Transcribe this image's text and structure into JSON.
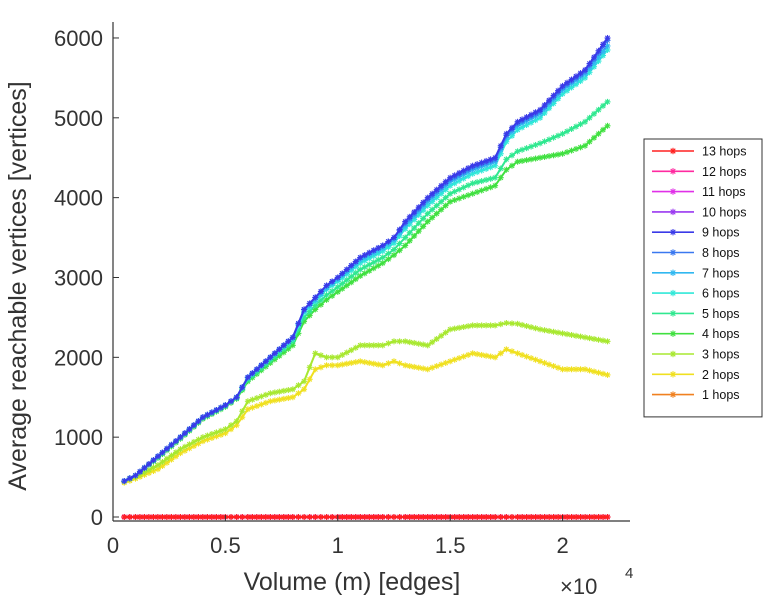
{
  "chart_data": {
    "type": "line",
    "title": "",
    "xlabel": "Volume (m) [edges]",
    "ylabel": "Average reachable vertices [vertices]",
    "x_exponent_base": "×10",
    "x_exponent_power": "4",
    "xlim": [
      0,
      2.3
    ],
    "ylim": [
      -50,
      6200
    ],
    "x_ticks": [
      0,
      0.5,
      1,
      1.5,
      2
    ],
    "x_tick_labels": [
      "0",
      "0.5",
      "1",
      "1.5",
      "2"
    ],
    "y_ticks": [
      0,
      1000,
      2000,
      3000,
      4000,
      5000,
      6000
    ],
    "y_tick_labels": [
      "0",
      "1000",
      "2000",
      "3000",
      "4000",
      "5000",
      "6000"
    ],
    "legend_position": "right",
    "marker": "asterisk",
    "x": [
      0.05,
      0.1,
      0.2,
      0.3,
      0.4,
      0.5,
      0.55,
      0.6,
      0.7,
      0.8,
      0.85,
      0.9,
      0.95,
      1.0,
      1.1,
      1.2,
      1.25,
      1.3,
      1.4,
      1.5,
      1.6,
      1.7,
      1.75,
      1.8,
      1.9,
      2.0,
      2.1,
      2.2
    ],
    "series": [
      {
        "name": "13 hops",
        "color": "#ff2020",
        "values": [
          0,
          0,
          0,
          0,
          0,
          0,
          0,
          0,
          0,
          0,
          0,
          0,
          0,
          0,
          0,
          0,
          0,
          0,
          0,
          0,
          0,
          0,
          0,
          0,
          0,
          0,
          0,
          0
        ]
      },
      {
        "name": "12 hops",
        "color": "#ff2aa0",
        "values": [
          0,
          0,
          0,
          0,
          0,
          0,
          0,
          0,
          0,
          0,
          0,
          0,
          0,
          0,
          0,
          0,
          0,
          0,
          0,
          0,
          0,
          0,
          0,
          0,
          0,
          0,
          0,
          0
        ]
      },
      {
        "name": "11 hops",
        "color": "#e030e8",
        "values": [
          0,
          0,
          0,
          0,
          0,
          0,
          0,
          0,
          0,
          0,
          0,
          0,
          0,
          0,
          0,
          0,
          0,
          0,
          0,
          0,
          0,
          0,
          0,
          0,
          0,
          0,
          0,
          0
        ]
      },
      {
        "name": "10 hops",
        "color": "#9a38f0",
        "values": [
          0,
          0,
          0,
          0,
          0,
          0,
          0,
          0,
          0,
          0,
          0,
          0,
          0,
          0,
          0,
          0,
          0,
          0,
          0,
          0,
          0,
          0,
          0,
          0,
          0,
          0,
          0,
          0
        ]
      },
      {
        "name": "9 hops",
        "color": "#3a3ae8",
        "values": [
          450,
          520,
          760,
          1000,
          1250,
          1400,
          1500,
          1750,
          2000,
          2250,
          2600,
          2750,
          2900,
          3000,
          3250,
          3400,
          3500,
          3700,
          4000,
          4250,
          4400,
          4500,
          4800,
          4950,
          5100,
          5400,
          5600,
          6000
        ]
      },
      {
        "name": "8 hops",
        "color": "#3a78f0",
        "values": [
          450,
          520,
          760,
          1000,
          1250,
          1400,
          1500,
          1750,
          2000,
          2250,
          2600,
          2750,
          2900,
          3000,
          3250,
          3400,
          3500,
          3680,
          3980,
          4230,
          4380,
          4480,
          4780,
          4930,
          5080,
          5380,
          5580,
          5970
        ]
      },
      {
        "name": "7 hops",
        "color": "#30b8f0",
        "values": [
          450,
          520,
          760,
          1000,
          1250,
          1400,
          1500,
          1750,
          2000,
          2250,
          2580,
          2720,
          2870,
          2980,
          3220,
          3370,
          3470,
          3650,
          3950,
          4200,
          4350,
          4450,
          4750,
          4900,
          5050,
          5350,
          5550,
          5900
        ]
      },
      {
        "name": "6 hops",
        "color": "#30e8d8",
        "values": [
          450,
          520,
          760,
          1000,
          1250,
          1400,
          1500,
          1740,
          1990,
          2230,
          2560,
          2700,
          2850,
          2950,
          3180,
          3330,
          3430,
          3610,
          3900,
          4150,
          4300,
          4400,
          4700,
          4850,
          5000,
          5300,
          5500,
          5850
        ]
      },
      {
        "name": "5 hops",
        "color": "#30e890",
        "values": [
          450,
          520,
          750,
          990,
          1240,
          1390,
          1490,
          1720,
          1960,
          2200,
          2500,
          2650,
          2780,
          2880,
          3100,
          3250,
          3350,
          3500,
          3800,
          4050,
          4180,
          4250,
          4480,
          4580,
          4680,
          4800,
          4950,
          5200
        ]
      },
      {
        "name": "4 hops",
        "color": "#40e040",
        "values": [
          450,
          520,
          740,
          980,
          1230,
          1380,
          1480,
          1700,
          1930,
          2150,
          2450,
          2600,
          2720,
          2820,
          3020,
          3180,
          3280,
          3400,
          3700,
          3950,
          4050,
          4150,
          4350,
          4450,
          4500,
          4550,
          4650,
          4900
        ]
      },
      {
        "name": "3 hops",
        "color": "#a8e830",
        "values": [
          450,
          500,
          650,
          850,
          1000,
          1100,
          1200,
          1450,
          1550,
          1600,
          1700,
          2050,
          2000,
          2000,
          2150,
          2150,
          2200,
          2200,
          2150,
          2350,
          2400,
          2400,
          2430,
          2420,
          2350,
          2300,
          2250,
          2200
        ]
      },
      {
        "name": "2 hops",
        "color": "#f0e020",
        "values": [
          430,
          480,
          600,
          800,
          950,
          1050,
          1150,
          1350,
          1450,
          1500,
          1600,
          1850,
          1900,
          1900,
          1950,
          1900,
          1950,
          1900,
          1850,
          1950,
          2050,
          2000,
          2100,
          2050,
          1950,
          1850,
          1850,
          1780
        ]
      },
      {
        "name": "1 hops",
        "color": "#f08020",
        "values": [
          0,
          0,
          0,
          0,
          0,
          0,
          0,
          0,
          0,
          0,
          0,
          0,
          0,
          0,
          0,
          0,
          0,
          0,
          0,
          0,
          0,
          0,
          0,
          0,
          0,
          0,
          0,
          0
        ]
      }
    ]
  }
}
